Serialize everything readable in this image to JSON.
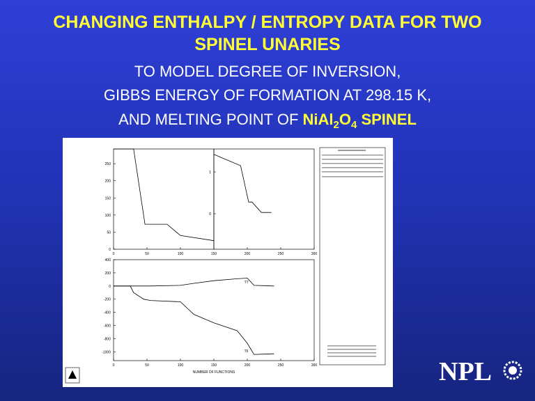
{
  "slide": {
    "title_lines": [
      "CHANGING ENTHALPY / ENTROPY DATA FOR TWO",
      "SPINEL UNARIES"
    ],
    "subtitle_lines": [
      "TO MODEL DEGREE OF INVERSION,",
      "GIBBS ENERGY OF FORMATION AT 298.15 K,"
    ],
    "last_line": {
      "prefix": "AND MELTING POINT OF",
      "formula": [
        "NiAl",
        "2",
        "O",
        "4"
      ],
      "suffix": "SPINEL"
    },
    "logo": "NPL"
  },
  "chart_data": [
    {
      "type": "line",
      "x": [
        0,
        30,
        47,
        80,
        100,
        150
      ],
      "values": [
        293,
        293,
        73,
        73,
        40,
        25
      ],
      "color": "#000000",
      "xlim": [
        0,
        150
      ],
      "xticks": [
        0,
        50,
        100,
        150
      ],
      "ylim": [
        0,
        293
      ],
      "yticks": [
        0,
        50,
        100,
        150,
        200,
        250
      ]
    },
    {
      "type": "line",
      "x": [
        150,
        190,
        202,
        207,
        221,
        236
      ],
      "values": [
        1.42,
        1.15,
        0.28,
        0.28,
        0.03,
        0.03
      ],
      "color": "#000000",
      "xlim": [
        150,
        300
      ],
      "xticks": [
        200,
        250,
        300
      ],
      "ylim": [
        -0.85,
        1.55
      ],
      "yticks": [
        0,
        1
      ]
    },
    {
      "type": "line",
      "x_label": "NUMBER OF FUNCTIONS",
      "x": [
        0,
        25,
        30,
        45,
        55,
        100,
        120,
        150,
        185,
        200,
        210,
        240
      ],
      "series": [
        {
          "name": "TT",
          "color": "#000000",
          "values": [
            0,
            0,
            0,
            0,
            0,
            10,
            40,
            80,
            110,
            120,
            10,
            0
          ]
        },
        {
          "name": "T6",
          "color": "#000000",
          "values": [
            0,
            0,
            -100,
            -200,
            -220,
            -240,
            -430,
            -560,
            -680,
            -870,
            -1040,
            -1030
          ]
        }
      ],
      "xlim": [
        0,
        300
      ],
      "xticks": [
        0,
        50,
        100,
        150,
        200,
        250,
        300
      ],
      "ylim": [
        -1134,
        400
      ],
      "yticks": [
        -1000,
        -800,
        -600,
        -400,
        -200,
        0,
        200,
        400
      ]
    }
  ]
}
